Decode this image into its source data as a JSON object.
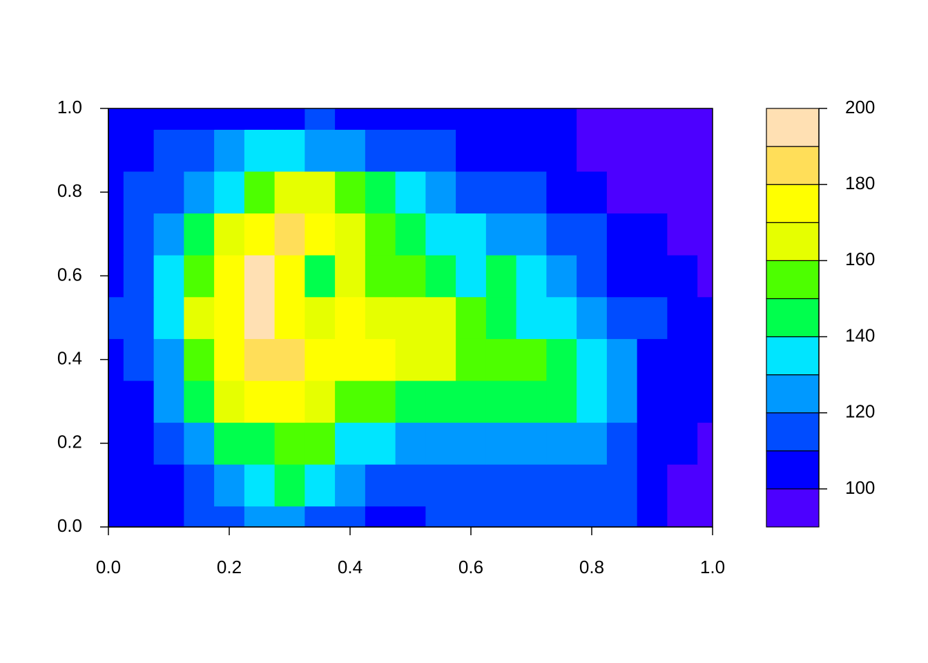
{
  "chart_data": {
    "type": "contour",
    "x": [
      0,
      0.05,
      0.1,
      0.15,
      0.2,
      0.25,
      0.3,
      0.35,
      0.4,
      0.45,
      0.5,
      0.55,
      0.6,
      0.65,
      0.7,
      0.75,
      0.8,
      0.85,
      0.9,
      0.95,
      1
    ],
    "y": [
      0,
      0.1,
      0.2,
      0.3,
      0.4,
      0.5,
      0.6,
      0.7,
      0.8,
      0.9,
      1
    ],
    "z": [
      [
        105,
        105,
        105,
        115,
        115,
        125,
        125,
        115,
        115,
        105,
        105,
        115,
        115,
        115,
        115,
        115,
        115,
        115,
        105,
        95,
        95
      ],
      [
        105,
        105,
        105,
        115,
        125,
        135,
        145,
        135,
        125,
        115,
        115,
        115,
        115,
        115,
        115,
        115,
        115,
        115,
        105,
        95,
        95
      ],
      [
        105,
        105,
        115,
        125,
        145,
        145,
        155,
        155,
        135,
        135,
        125,
        125,
        125,
        125,
        125,
        125,
        125,
        115,
        105,
        105,
        95
      ],
      [
        105,
        105,
        125,
        145,
        165,
        175,
        175,
        165,
        155,
        155,
        145,
        145,
        145,
        145,
        145,
        145,
        135,
        125,
        105,
        105,
        105
      ],
      [
        105,
        115,
        125,
        155,
        175,
        185,
        185,
        175,
        175,
        175,
        165,
        165,
        155,
        155,
        155,
        145,
        135,
        125,
        105,
        105,
        105
      ],
      [
        115,
        115,
        135,
        165,
        175,
        195,
        175,
        165,
        175,
        165,
        165,
        165,
        155,
        145,
        135,
        135,
        125,
        115,
        115,
        105,
        105
      ],
      [
        105,
        115,
        135,
        155,
        175,
        195,
        175,
        145,
        165,
        155,
        155,
        145,
        135,
        145,
        135,
        125,
        115,
        105,
        105,
        105,
        95
      ],
      [
        105,
        115,
        125,
        145,
        165,
        175,
        185,
        175,
        165,
        155,
        145,
        135,
        135,
        125,
        125,
        115,
        115,
        105,
        105,
        95,
        95
      ],
      [
        105,
        115,
        115,
        125,
        135,
        155,
        165,
        165,
        155,
        145,
        135,
        125,
        115,
        115,
        115,
        105,
        105,
        95,
        95,
        95,
        95
      ],
      [
        105,
        105,
        115,
        115,
        125,
        135,
        135,
        125,
        125,
        115,
        115,
        115,
        105,
        105,
        105,
        105,
        95,
        95,
        95,
        95,
        95
      ],
      [
        105,
        105,
        105,
        105,
        105,
        105,
        105,
        115,
        105,
        105,
        105,
        105,
        105,
        105,
        105,
        105,
        95,
        95,
        95,
        95,
        95
      ]
    ],
    "levels": [
      90,
      100,
      110,
      120,
      130,
      140,
      150,
      160,
      170,
      180,
      190,
      200
    ],
    "colors": [
      "#4C00FF",
      "#0000FF",
      "#004CFF",
      "#0099FF",
      "#00E5FF",
      "#00FF4D",
      "#4DFF00",
      "#E6FF00",
      "#FFFF00",
      "#FFDE59",
      "#FFE0B3"
    ],
    "xlim": [
      0,
      1
    ],
    "ylim": [
      0,
      1
    ],
    "xticks": [
      {
        "value": 0,
        "label": "0.0"
      },
      0.2,
      0.4,
      0.6,
      0.8,
      {
        "value": 1,
        "label": "1.0"
      }
    ],
    "yticks": [
      {
        "value": 0,
        "label": "0.0"
      },
      0.2,
      0.4,
      0.6,
      0.8,
      {
        "value": 1,
        "label": "1.0"
      }
    ],
    "legend_lim": [
      90,
      200
    ],
    "legend_ticks": [
      100,
      120,
      140,
      160,
      180,
      200
    ]
  }
}
